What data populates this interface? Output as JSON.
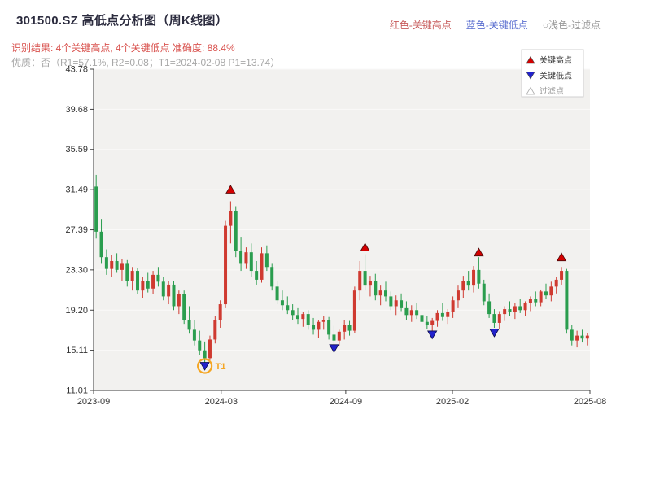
{
  "header": {
    "title": "301500.SZ 高低点分析图（周K线图）",
    "legend_high": "红色-关键高点",
    "legend_low": "蓝色-关键低点",
    "legend_filter": "○浅色-过滤点",
    "result_line": "识别结果: 4个关键高点, 4个关键低点   准确度: 88.4%",
    "quality_line": "优质：否（R1=57.1%, R2=0.08；T1=2024-02-08 P1=13.74）"
  },
  "colors": {
    "title_text": "#2b2b3e",
    "result_text": "#d9534f",
    "quality_text": "#a8a8a8",
    "header_high": "#c75a5a",
    "header_low": "#5b6fd0",
    "header_filter": "#999999",
    "up_candle": "#cf3a30",
    "down_candle": "#2a9d4e",
    "key_high_marker": "#d40000",
    "key_low_marker": "#2222cc",
    "t1_circle": "#f5a623",
    "plot_bg": "#f2f1ef"
  },
  "chart_data": {
    "type": "candlestick",
    "title": "301500.SZ 高低点分析图（周K线图）",
    "ylim": [
      11.01,
      43.78
    ],
    "y_ticks": [
      43.78,
      39.68,
      35.59,
      31.49,
      27.39,
      23.3,
      19.2,
      15.11,
      11.01
    ],
    "x_ticks": [
      {
        "label": "2023-09",
        "pos": 0.0
      },
      {
        "label": "2024-03",
        "pos": 0.257
      },
      {
        "label": "2024-09",
        "pos": 0.508
      },
      {
        "label": "2025-02",
        "pos": 0.723
      },
      {
        "label": "2025-08",
        "pos": 1.0
      }
    ],
    "legend": [
      {
        "label": "关键高点",
        "marker": "up",
        "color": "#d40000",
        "text_color": "#333333"
      },
      {
        "label": "关键低点",
        "marker": "down",
        "color": "#2222cc",
        "text_color": "#333333"
      },
      {
        "label": "过滤点",
        "marker": "up-hollow",
        "color": "#ffffff",
        "text_color": "#999999"
      }
    ],
    "candles": [
      [
        31.8,
        33.0,
        26.5,
        27.2
      ],
      [
        27.2,
        28.5,
        24.0,
        24.6
      ],
      [
        24.6,
        25.4,
        22.8,
        23.4
      ],
      [
        23.4,
        24.8,
        22.6,
        24.2
      ],
      [
        24.2,
        25.0,
        23.0,
        23.3
      ],
      [
        23.3,
        24.4,
        22.2,
        24.0
      ],
      [
        24.0,
        24.3,
        21.6,
        22.2
      ],
      [
        22.2,
        23.6,
        21.2,
        23.2
      ],
      [
        23.2,
        23.5,
        20.8,
        21.2
      ],
      [
        21.2,
        22.6,
        20.4,
        22.2
      ],
      [
        22.2,
        23.0,
        21.0,
        21.4
      ],
      [
        21.4,
        23.2,
        20.8,
        22.8
      ],
      [
        22.8,
        23.6,
        21.6,
        22.1
      ],
      [
        22.1,
        22.6,
        20.2,
        20.6
      ],
      [
        20.6,
        22.2,
        19.8,
        21.8
      ],
      [
        21.8,
        22.2,
        19.2,
        19.6
      ],
      [
        19.6,
        21.2,
        18.8,
        20.8
      ],
      [
        20.8,
        21.2,
        17.8,
        18.2
      ],
      [
        18.2,
        19.6,
        16.8,
        17.2
      ],
      [
        17.2,
        18.2,
        15.6,
        16.1
      ],
      [
        16.1,
        17.1,
        14.6,
        15.1
      ],
      [
        15.1,
        16.0,
        13.74,
        14.3
      ],
      [
        14.3,
        16.6,
        14.1,
        16.2
      ],
      [
        16.2,
        18.6,
        15.8,
        18.2
      ],
      [
        18.2,
        20.2,
        17.4,
        19.8
      ],
      [
        19.8,
        28.3,
        19.4,
        27.8
      ],
      [
        27.8,
        30.3,
        26.0,
        29.3
      ],
      [
        29.3,
        29.8,
        24.6,
        25.2
      ],
      [
        25.2,
        26.6,
        23.2,
        24.0
      ],
      [
        24.0,
        25.6,
        23.4,
        25.1
      ],
      [
        25.1,
        26.0,
        22.6,
        23.2
      ],
      [
        23.2,
        24.2,
        21.8,
        22.3
      ],
      [
        22.3,
        25.6,
        22.0,
        25.0
      ],
      [
        25.0,
        25.8,
        23.2,
        23.6
      ],
      [
        23.6,
        24.0,
        21.2,
        21.6
      ],
      [
        21.6,
        22.2,
        19.8,
        20.2
      ],
      [
        20.2,
        21.2,
        19.2,
        19.7
      ],
      [
        19.7,
        20.6,
        18.8,
        19.2
      ],
      [
        19.2,
        19.8,
        18.2,
        18.7
      ],
      [
        18.7,
        19.4,
        17.8,
        18.3
      ],
      [
        18.3,
        19.0,
        17.5,
        18.8
      ],
      [
        18.8,
        19.2,
        17.2,
        17.7
      ],
      [
        17.7,
        18.4,
        16.7,
        17.2
      ],
      [
        17.2,
        18.2,
        16.4,
        18.0
      ],
      [
        18.0,
        18.6,
        17.2,
        18.2
      ],
      [
        18.2,
        18.5,
        16.2,
        16.7
      ],
      [
        16.7,
        17.6,
        15.7,
        16.1
      ],
      [
        16.1,
        17.2,
        15.6,
        17.0
      ],
      [
        17.0,
        18.2,
        16.2,
        17.7
      ],
      [
        17.7,
        18.1,
        16.6,
        17.1
      ],
      [
        17.1,
        21.6,
        16.9,
        21.2
      ],
      [
        21.2,
        24.2,
        20.2,
        23.2
      ],
      [
        23.2,
        24.9,
        21.2,
        21.7
      ],
      [
        21.7,
        22.7,
        20.6,
        22.2
      ],
      [
        22.2,
        22.9,
        20.2,
        20.7
      ],
      [
        20.7,
        21.7,
        19.7,
        21.2
      ],
      [
        21.2,
        22.1,
        20.1,
        20.6
      ],
      [
        20.6,
        21.1,
        19.2,
        19.6
      ],
      [
        19.6,
        20.7,
        18.7,
        20.2
      ],
      [
        20.2,
        20.9,
        19.1,
        19.4
      ],
      [
        19.4,
        20.1,
        18.2,
        18.7
      ],
      [
        18.7,
        19.7,
        18.0,
        19.2
      ],
      [
        19.2,
        19.9,
        18.3,
        18.7
      ],
      [
        18.7,
        19.1,
        17.6,
        18.0
      ],
      [
        18.0,
        18.6,
        17.3,
        17.7
      ],
      [
        17.7,
        18.4,
        17.0,
        18.1
      ],
      [
        18.1,
        19.2,
        17.5,
        18.9
      ],
      [
        18.9,
        19.9,
        18.1,
        18.5
      ],
      [
        18.5,
        19.3,
        17.8,
        19.0
      ],
      [
        19.0,
        20.6,
        18.4,
        20.2
      ],
      [
        20.2,
        21.7,
        19.4,
        21.2
      ],
      [
        21.2,
        22.7,
        20.4,
        22.2
      ],
      [
        22.2,
        23.2,
        21.2,
        21.7
      ],
      [
        21.7,
        23.7,
        21.0,
        23.3
      ],
      [
        23.3,
        24.6,
        21.4,
        21.9
      ],
      [
        21.9,
        22.3,
        19.7,
        20.1
      ],
      [
        20.1,
        20.9,
        18.4,
        18.8
      ],
      [
        18.8,
        19.3,
        17.4,
        17.9
      ],
      [
        17.9,
        19.1,
        17.3,
        18.8
      ],
      [
        18.8,
        19.6,
        18.1,
        19.3
      ],
      [
        19.3,
        20.1,
        18.6,
        19.0
      ],
      [
        19.0,
        19.9,
        18.3,
        19.6
      ],
      [
        19.6,
        20.3,
        18.9,
        19.2
      ],
      [
        19.2,
        20.1,
        18.6,
        19.9
      ],
      [
        19.9,
        20.6,
        19.1,
        20.3
      ],
      [
        20.3,
        21.1,
        19.6,
        20.0
      ],
      [
        20.0,
        21.3,
        19.6,
        21.1
      ],
      [
        21.1,
        21.9,
        20.3,
        20.7
      ],
      [
        20.7,
        22.1,
        20.1,
        21.6
      ],
      [
        21.6,
        22.6,
        20.9,
        22.3
      ],
      [
        22.3,
        23.6,
        21.8,
        23.2
      ],
      [
        23.2,
        23.4,
        16.8,
        17.2
      ],
      [
        17.2,
        17.7,
        15.6,
        16.1
      ],
      [
        16.1,
        17.1,
        15.4,
        16.6
      ],
      [
        16.6,
        17.2,
        15.9,
        16.3
      ],
      [
        16.3,
        16.9,
        15.6,
        16.6
      ]
    ],
    "key_highs": [
      {
        "index": 26,
        "value": 31.5
      },
      {
        "index": 52,
        "value": 25.6
      },
      {
        "index": 74,
        "value": 25.1
      },
      {
        "index": 90,
        "value": 24.6
      }
    ],
    "key_lows": [
      {
        "index": 21,
        "value": 13.5,
        "label": "T1",
        "circled": true
      },
      {
        "index": 46,
        "value": 15.3
      },
      {
        "index": 65,
        "value": 16.7
      },
      {
        "index": 77,
        "value": 16.9
      }
    ]
  }
}
